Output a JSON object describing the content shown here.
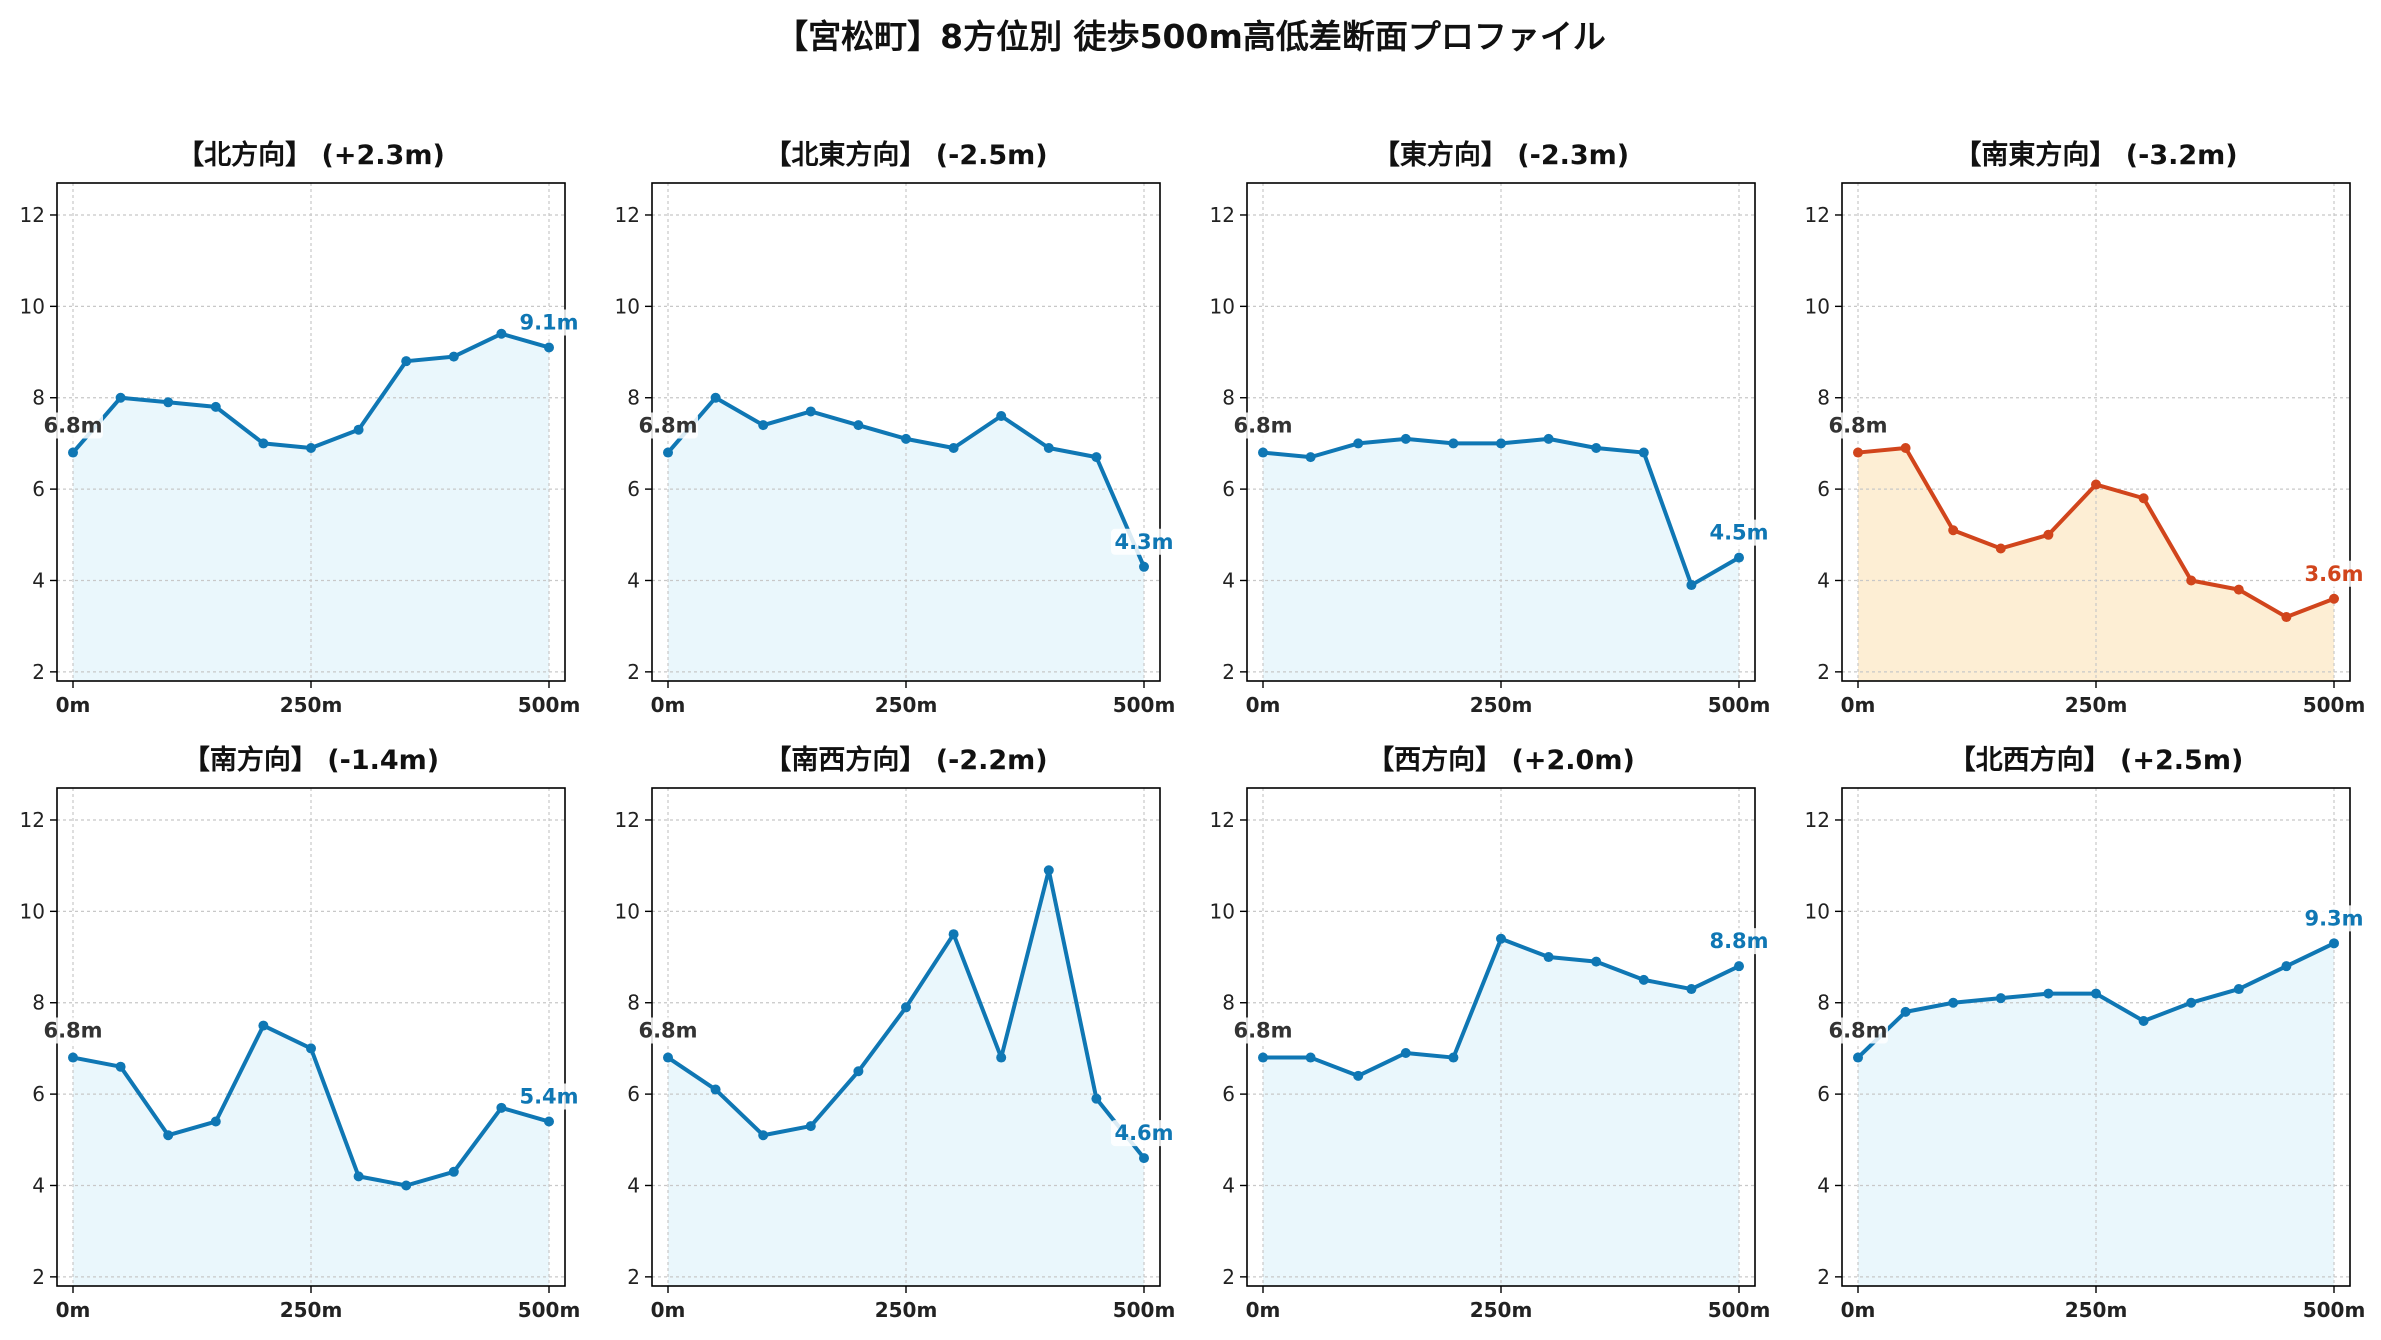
{
  "title": "【宮松町】8方位別 徒歩500m高低差断面プロファイル",
  "colors": {
    "normal_line": "#0f77b4",
    "normal_fill": "#eaf7fc",
    "alert_line": "#d1451c",
    "alert_fill": "#fdeed4",
    "start_label": "#333333",
    "grid": "#c8c8c8"
  },
  "chart_data": [
    {
      "type": "line",
      "title": "【北方向】 (+2.3m)",
      "alert": false,
      "start_label": "6.8m",
      "end_label": "9.1m",
      "x": [
        0,
        50,
        100,
        150,
        200,
        250,
        300,
        350,
        400,
        450,
        500
      ],
      "y": [
        6.8,
        8.0,
        7.9,
        7.8,
        7.0,
        6.9,
        7.3,
        8.8,
        8.9,
        9.4,
        9.1
      ],
      "xticks": [
        "0m",
        "250m",
        "500m"
      ],
      "yticks": [
        2,
        4,
        6,
        8,
        10,
        12
      ],
      "ylim": [
        1.8,
        12.7
      ],
      "grid": true
    },
    {
      "type": "line",
      "title": "【北東方向】 (-2.5m)",
      "alert": false,
      "start_label": "6.8m",
      "end_label": "4.3m",
      "x": [
        0,
        50,
        100,
        150,
        200,
        250,
        300,
        350,
        400,
        450,
        500
      ],
      "y": [
        6.8,
        8.0,
        7.4,
        7.7,
        7.4,
        7.1,
        6.9,
        7.6,
        6.9,
        6.7,
        4.3
      ],
      "xticks": [
        "0m",
        "250m",
        "500m"
      ],
      "yticks": [
        2,
        4,
        6,
        8,
        10,
        12
      ],
      "ylim": [
        1.8,
        12.7
      ],
      "grid": true
    },
    {
      "type": "line",
      "title": "【東方向】 (-2.3m)",
      "alert": false,
      "start_label": "6.8m",
      "end_label": "4.5m",
      "x": [
        0,
        50,
        100,
        150,
        200,
        250,
        300,
        350,
        400,
        450,
        500
      ],
      "y": [
        6.8,
        6.7,
        7.0,
        7.1,
        7.0,
        7.0,
        7.1,
        6.9,
        6.8,
        3.9,
        4.5
      ],
      "xticks": [
        "0m",
        "250m",
        "500m"
      ],
      "yticks": [
        2,
        4,
        6,
        8,
        10,
        12
      ],
      "ylim": [
        1.8,
        12.7
      ],
      "grid": true
    },
    {
      "type": "line",
      "title": "【南東方向】 (-3.2m)",
      "alert": true,
      "start_label": "6.8m",
      "end_label": "3.6m",
      "x": [
        0,
        50,
        100,
        150,
        200,
        250,
        300,
        350,
        400,
        450,
        500
      ],
      "y": [
        6.8,
        6.9,
        5.1,
        4.7,
        5.0,
        6.1,
        5.8,
        4.0,
        3.8,
        3.2,
        3.6
      ],
      "xticks": [
        "0m",
        "250m",
        "500m"
      ],
      "yticks": [
        2,
        4,
        6,
        8,
        10,
        12
      ],
      "ylim": [
        1.8,
        12.7
      ],
      "grid": true
    },
    {
      "type": "line",
      "title": "【南方向】 (-1.4m)",
      "alert": false,
      "start_label": "6.8m",
      "end_label": "5.4m",
      "x": [
        0,
        50,
        100,
        150,
        200,
        250,
        300,
        350,
        400,
        450,
        500
      ],
      "y": [
        6.8,
        6.6,
        5.1,
        5.4,
        7.5,
        7.0,
        4.2,
        4.0,
        4.3,
        5.7,
        5.4
      ],
      "xticks": [
        "0m",
        "250m",
        "500m"
      ],
      "yticks": [
        2,
        4,
        6,
        8,
        10,
        12
      ],
      "ylim": [
        1.8,
        12.7
      ],
      "grid": true
    },
    {
      "type": "line",
      "title": "【南西方向】 (-2.2m)",
      "alert": false,
      "start_label": "6.8m",
      "end_label": "4.6m",
      "x": [
        0,
        50,
        100,
        150,
        200,
        250,
        300,
        350,
        400,
        450,
        500
      ],
      "y": [
        6.8,
        6.1,
        5.1,
        5.3,
        6.5,
        7.9,
        9.5,
        6.8,
        10.9,
        5.9,
        4.6
      ],
      "xticks": [
        "0m",
        "250m",
        "500m"
      ],
      "yticks": [
        2,
        4,
        6,
        8,
        10,
        12
      ],
      "ylim": [
        1.8,
        12.7
      ],
      "grid": true
    },
    {
      "type": "line",
      "title": "【西方向】 (+2.0m)",
      "alert": false,
      "start_label": "6.8m",
      "end_label": "8.8m",
      "x": [
        0,
        50,
        100,
        150,
        200,
        250,
        300,
        350,
        400,
        450,
        500
      ],
      "y": [
        6.8,
        6.8,
        6.4,
        6.9,
        6.8,
        9.4,
        9.0,
        8.9,
        8.5,
        8.3,
        8.8
      ],
      "xticks": [
        "0m",
        "250m",
        "500m"
      ],
      "yticks": [
        2,
        4,
        6,
        8,
        10,
        12
      ],
      "ylim": [
        1.8,
        12.7
      ],
      "grid": true
    },
    {
      "type": "line",
      "title": "【北西方向】 (+2.5m)",
      "alert": false,
      "start_label": "6.8m",
      "end_label": "9.3m",
      "x": [
        0,
        50,
        100,
        150,
        200,
        250,
        300,
        350,
        400,
        450,
        500
      ],
      "y": [
        6.8,
        7.8,
        8.0,
        8.1,
        8.2,
        8.2,
        7.6,
        8.0,
        8.3,
        8.8,
        9.3
      ],
      "xticks": [
        "0m",
        "250m",
        "500m"
      ],
      "yticks": [
        2,
        4,
        6,
        8,
        10,
        12
      ],
      "ylim": [
        1.8,
        12.7
      ],
      "grid": true
    }
  ]
}
